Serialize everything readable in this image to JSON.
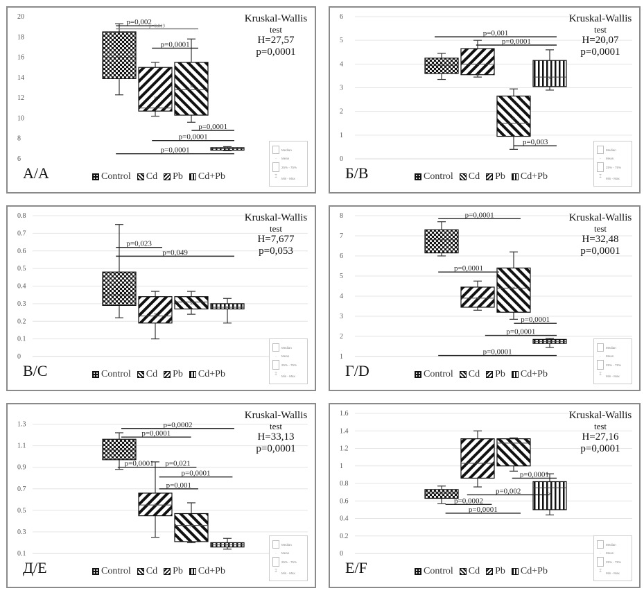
{
  "groups": [
    "Control",
    "Cd",
    "Pb",
    "Cd+Pb"
  ],
  "key_box": {
    "median": "Median",
    "mean": "Mean",
    "iqr": "25% - 75%",
    "range": "Min - Max"
  },
  "kw_title": "Kruskal-Wallis",
  "kw_subtitle": "test",
  "chart_data": [
    {
      "type": "box",
      "panel_label": "А/A",
      "title": "",
      "xlabel": "",
      "ylabel": "",
      "ylim": [
        6,
        20
      ],
      "yticks": [
        6,
        8,
        10,
        12,
        14,
        16,
        18,
        20
      ],
      "grid": false,
      "kw": {
        "H": "H=27,57",
        "p": "p=0,0001"
      },
      "legend_position": "bottom",
      "boxes": [
        {
          "group": "Control",
          "min": 12.3,
          "q1": 13.9,
          "median": 16.0,
          "mean": 16.0,
          "q3": 18.5,
          "max": 19.3
        },
        {
          "group": "Cd",
          "min": 10.2,
          "q1": 10.7,
          "median": 11.0,
          "mean": 12.0,
          "q3": 15.0,
          "max": 15.5
        },
        {
          "group": "Pb",
          "min": 9.6,
          "q1": 10.3,
          "median": 12.8,
          "mean": 13.1,
          "q3": 15.5,
          "max": 17.8
        },
        {
          "group": "Cd+Pb",
          "min": 6.8,
          "q1": 6.85,
          "median": 7.0,
          "mean": 7.0,
          "q3": 7.1,
          "max": 7.2
        }
      ],
      "comparisons": [
        {
          "label": "p=0,002",
          "from": 0.1,
          "to": 1.0,
          "y": 19.1
        },
        {
          "label": "p=0,019",
          "from": 0.1,
          "to": 2.0,
          "y": 18.8,
          "faint": true
        },
        {
          "label": "p=0,0001",
          "from": 1.1,
          "to": 2.0,
          "y": 16.9
        },
        {
          "label": "p=0,0001",
          "from": 2.2,
          "to": 3.0,
          "y": 8.8
        },
        {
          "label": "p=0,0001",
          "from": 1.1,
          "to": 3.0,
          "y": 7.8
        },
        {
          "label": "p=0,0001",
          "from": 0.1,
          "to": 3.0,
          "y": 6.5
        }
      ]
    },
    {
      "type": "box",
      "panel_label": "Б/B",
      "title": "",
      "xlabel": "",
      "ylabel": "",
      "ylim": [
        0,
        6
      ],
      "yticks": [
        0,
        1,
        2,
        3,
        4,
        5,
        6
      ],
      "grid": true,
      "kw": {
        "H": "H=20,07",
        "p": "p=0,0001"
      },
      "legend_position": "bottom",
      "boxes": [
        {
          "group": "Control",
          "min": 3.35,
          "q1": 3.6,
          "median": 3.95,
          "mean": 3.95,
          "q3": 4.25,
          "max": 4.45
        },
        {
          "group": "Cd",
          "min": 3.45,
          "q1": 3.55,
          "median": 4.0,
          "mean": 3.55,
          "q3": 4.65,
          "max": 5.0
        },
        {
          "group": "Pb",
          "min": 0.4,
          "q1": 0.95,
          "median": 1.5,
          "mean": 1.7,
          "q3": 2.65,
          "max": 2.95
        },
        {
          "group": "Cd+Pb",
          "min": 2.9,
          "q1": 3.05,
          "median": 3.45,
          "mean": 3.4,
          "q3": 4.15,
          "max": 4.6
        }
      ],
      "comparisons": [
        {
          "label": "p=0,001",
          "from": 0.0,
          "to": 3.0,
          "y": 5.15
        },
        {
          "label": "p=0,0001",
          "from": 1.15,
          "to": 3.0,
          "y": 4.8
        },
        {
          "label": "p=0,003",
          "from": 2.2,
          "to": 3.0,
          "y": 0.55
        }
      ]
    },
    {
      "type": "box",
      "panel_label": "В/C",
      "title": "",
      "xlabel": "",
      "ylabel": "",
      "ylim": [
        0,
        0.8
      ],
      "yticks": [
        0,
        0.1,
        0.2,
        0.3,
        0.4,
        0.5,
        0.6,
        0.7,
        0.8
      ],
      "grid": true,
      "kw": {
        "H": "H=7,677",
        "p": "p=0,053"
      },
      "legend_position": "bottom",
      "boxes": [
        {
          "group": "Control",
          "min": 0.22,
          "q1": 0.29,
          "median": 0.35,
          "mean": 0.39,
          "q3": 0.48,
          "max": 0.75
        },
        {
          "group": "Cd",
          "min": 0.1,
          "q1": 0.19,
          "median": 0.23,
          "mean": 0.24,
          "q3": 0.34,
          "max": 0.37
        },
        {
          "group": "Pb",
          "min": 0.24,
          "q1": 0.27,
          "median": 0.31,
          "mean": 0.3,
          "q3": 0.34,
          "max": 0.37
        },
        {
          "group": "Cd+Pb",
          "min": 0.19,
          "q1": 0.27,
          "median": 0.28,
          "mean": 0.28,
          "q3": 0.3,
          "max": 0.33
        }
      ],
      "comparisons": [
        {
          "label": "p=0,023",
          "from": 0.1,
          "to": 1.0,
          "y": 0.62
        },
        {
          "label": "p=0,049",
          "from": 0.1,
          "to": 3.0,
          "y": 0.57
        }
      ]
    },
    {
      "type": "box",
      "panel_label": "Г/D",
      "title": "",
      "xlabel": "",
      "ylabel": "",
      "ylim": [
        1,
        8
      ],
      "yticks": [
        1,
        2,
        3,
        4,
        5,
        6,
        7,
        8
      ],
      "grid": true,
      "kw": {
        "H": "H=32,48",
        "p": "p=0,0001"
      },
      "legend_position": "bottom",
      "boxes": [
        {
          "group": "Control",
          "min": 6.0,
          "q1": 6.15,
          "median": 6.8,
          "mean": 6.8,
          "q3": 7.3,
          "max": 7.7
        },
        {
          "group": "Cd",
          "min": 3.3,
          "q1": 3.45,
          "median": 3.9,
          "mean": 3.9,
          "q3": 4.45,
          "max": 4.75
        },
        {
          "group": "Pb",
          "min": 2.85,
          "q1": 3.2,
          "median": 4.4,
          "mean": 4.4,
          "q3": 5.4,
          "max": 6.2
        },
        {
          "group": "Cd+Pb",
          "min": 1.45,
          "q1": 1.65,
          "median": 1.75,
          "mean": 1.75,
          "q3": 1.85,
          "max": 1.9
        }
      ],
      "comparisons": [
        {
          "label": "p=0,0001",
          "from": 0.1,
          "to": 2.0,
          "y": 7.85
        },
        {
          "label": "p=0,0001",
          "from": 0.1,
          "to": 1.4,
          "y": 5.2
        },
        {
          "label": "p=0,0001",
          "from": 2.2,
          "to": 3.0,
          "y": 2.65
        },
        {
          "label": "p=0,0001",
          "from": 1.4,
          "to": 3.0,
          "y": 2.05
        },
        {
          "label": "p=0,0001",
          "from": 0.1,
          "to": 3.0,
          "y": 1.05
        }
      ]
    },
    {
      "type": "box",
      "panel_label": "Д/E",
      "title": "",
      "xlabel": "",
      "ylabel": "",
      "ylim": [
        0.1,
        1.4
      ],
      "yticks": [
        0.1,
        0.3,
        0.5,
        0.7,
        0.9,
        1.1,
        1.3
      ],
      "grid": true,
      "kw": {
        "H": "H=33,13",
        "p": "p=0,0001"
      },
      "legend_position": "bottom",
      "boxes": [
        {
          "group": "Control",
          "min": 0.88,
          "q1": 0.97,
          "median": 1.06,
          "mean": 1.05,
          "q3": 1.16,
          "max": 1.22
        },
        {
          "group": "Cd",
          "min": 0.25,
          "q1": 0.45,
          "median": 0.55,
          "mean": 0.55,
          "q3": 0.66,
          "max": 0.95
        },
        {
          "group": "Pb",
          "min": 0.2,
          "q1": 0.21,
          "median": 0.36,
          "mean": 0.35,
          "q3": 0.47,
          "max": 0.57
        },
        {
          "group": "Cd+Pb",
          "min": 0.14,
          "q1": 0.16,
          "median": 0.18,
          "mean": 0.18,
          "q3": 0.2,
          "max": 0.24
        }
      ],
      "comparisons": [
        {
          "label": "p=0,0002",
          "from": 0.25,
          "to": 3.0,
          "y": 1.26
        },
        {
          "label": "p=0,0001",
          "from": 0.25,
          "to": 1.8,
          "y": 1.18
        },
        {
          "label": "p=0,0001",
          "from": 0.15,
          "to": 0.95,
          "y": 0.9
        },
        {
          "label": "p=0,021",
          "from": 1.3,
          "to": 1.95,
          "y": 0.9
        },
        {
          "label": "p=0,0001",
          "from": 1.3,
          "to": 2.95,
          "y": 0.81
        },
        {
          "label": "p=0,001",
          "from": 1.3,
          "to": 2.0,
          "y": 0.7
        }
      ]
    },
    {
      "type": "box",
      "panel_label": "E/F",
      "title": "",
      "xlabel": "",
      "ylabel": "",
      "ylim": [
        0,
        1.6
      ],
      "yticks": [
        0,
        0.2,
        0.4,
        0.6,
        0.8,
        1,
        1.2,
        1.4,
        1.6
      ],
      "grid": true,
      "kw": {
        "H": "H=27,16",
        "p": "p=0,0001"
      },
      "legend_position": "bottom",
      "boxes": [
        {
          "group": "Control",
          "min": 0.57,
          "q1": 0.63,
          "median": 0.69,
          "mean": 0.68,
          "q3": 0.73,
          "max": 0.77
        },
        {
          "group": "Cd",
          "min": 0.76,
          "q1": 0.86,
          "median": 1.03,
          "mean": 1.05,
          "q3": 1.31,
          "max": 1.4
        },
        {
          "group": "Pb",
          "min": 0.94,
          "q1": 1.0,
          "median": 1.26,
          "mean": 1.2,
          "q3": 1.31,
          "max": 1.32
        },
        {
          "group": "Cd+Pb",
          "min": 0.44,
          "q1": 0.5,
          "median": 0.75,
          "mean": 0.68,
          "q3": 0.82,
          "max": 0.91
        }
      ],
      "comparisons": [
        {
          "label": "p=0,0001",
          "from": 2.15,
          "to": 3.0,
          "y": 0.86
        },
        {
          "label": "p=0,002",
          "from": 0.9,
          "to": 2.8,
          "y": 0.67
        },
        {
          "label": "p=0,0002",
          "from": 0.3,
          "to": 1.2,
          "y": 0.56
        },
        {
          "label": "p=0,0001",
          "from": 0.3,
          "to": 2.0,
          "y": 0.46
        }
      ]
    }
  ]
}
